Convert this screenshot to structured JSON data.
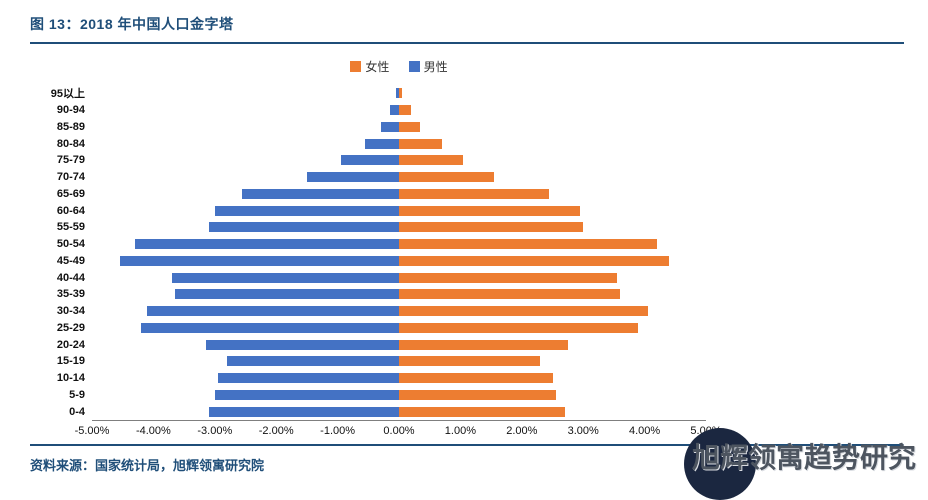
{
  "title": "图 13：2018 年中国人口金字塔",
  "legend": {
    "female": "女性",
    "male": "男性"
  },
  "source": "资料来源：国家统计局，旭辉领寓研究院",
  "watermark": "旭辉领寓趋势研究",
  "colors": {
    "female": "#ED7D31",
    "male": "#4472C4",
    "accent": "#1F4E79"
  },
  "chart_data": {
    "type": "bar",
    "subtype": "population_pyramid",
    "title": "2018 年中国人口金字塔",
    "categories": [
      "95以上",
      "90-94",
      "85-89",
      "80-84",
      "75-79",
      "70-74",
      "65-69",
      "60-64",
      "55-59",
      "50-54",
      "45-49",
      "40-44",
      "35-39",
      "30-34",
      "25-29",
      "20-24",
      "15-19",
      "10-14",
      "5-9",
      "0-4"
    ],
    "series": [
      {
        "name": "女性",
        "side": "right",
        "color": "#ED7D31",
        "values": [
          0.05,
          0.2,
          0.35,
          0.7,
          1.05,
          1.55,
          2.45,
          2.95,
          3.0,
          4.2,
          4.4,
          3.55,
          3.6,
          4.05,
          3.9,
          2.75,
          2.3,
          2.5,
          2.55,
          2.7
        ]
      },
      {
        "name": "男性",
        "side": "left",
        "color": "#4472C4",
        "values": [
          -0.05,
          -0.15,
          -0.3,
          -0.55,
          -0.95,
          -1.5,
          -2.55,
          -3.0,
          -3.1,
          -4.3,
          -4.55,
          -3.7,
          -3.65,
          -4.1,
          -4.2,
          -3.15,
          -2.8,
          -2.95,
          -3.0,
          -3.1
        ]
      }
    ],
    "x_ticks": [
      "-5.00%",
      "-4.00%",
      "-3.00%",
      "-2.00%",
      "-1.00%",
      "0.00%",
      "1.00%",
      "2.00%",
      "3.00%",
      "4.00%",
      "5.00%"
    ],
    "xlim": [
      -5,
      5
    ],
    "x_unit": "%",
    "legend_position": "top",
    "grid": false
  }
}
